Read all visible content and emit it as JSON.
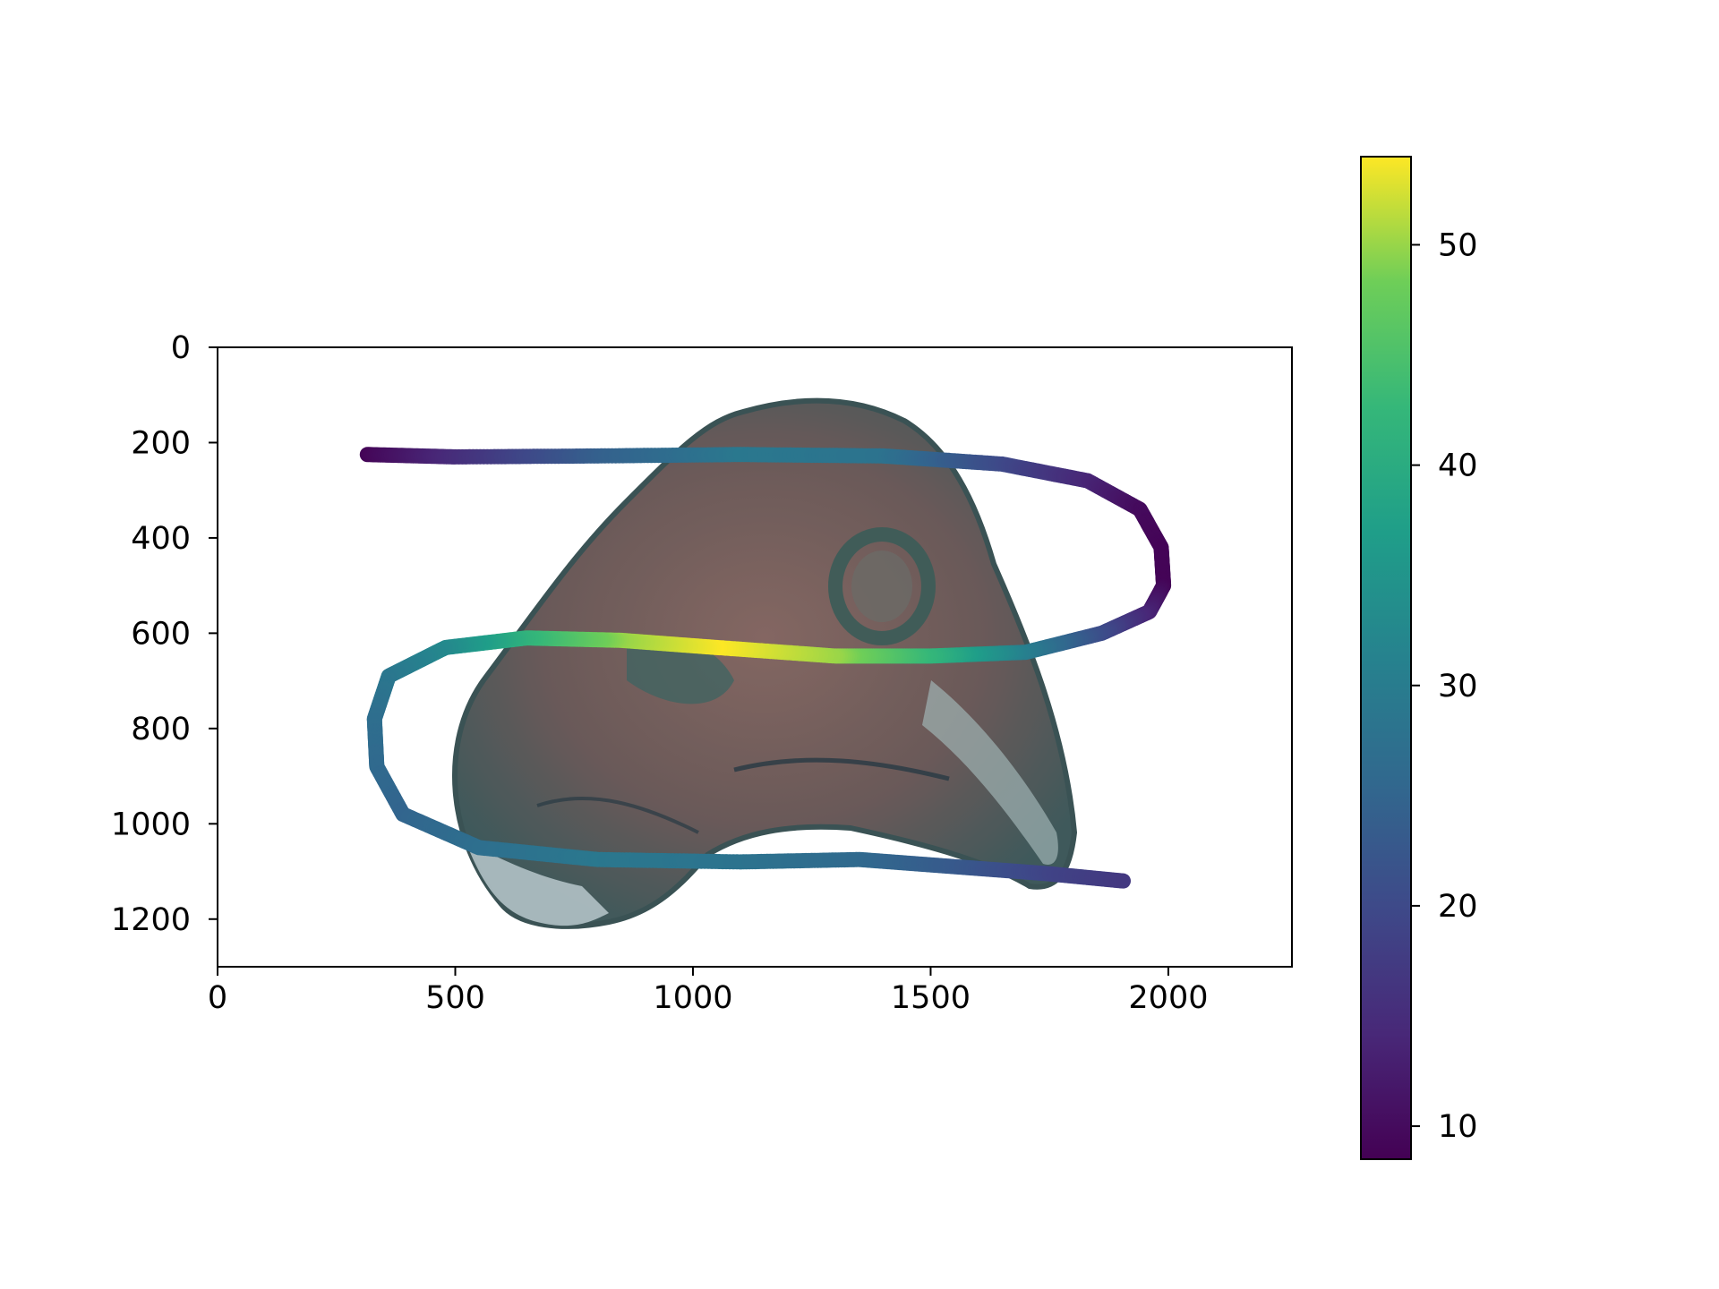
{
  "chart_data": {
    "type": "scatter",
    "title": "",
    "xlabel": "",
    "ylabel": "",
    "xlim": [
      0,
      2260
    ],
    "ylim": [
      1300,
      0
    ],
    "y_inverted": true,
    "grid": false,
    "background_image": "specimen-head-volume-render",
    "x_ticks": [
      0,
      500,
      1000,
      1500,
      2000
    ],
    "y_ticks": [
      0,
      200,
      400,
      600,
      800,
      1000,
      1200
    ],
    "x_tick_labels": [
      "0",
      "500",
      "1000",
      "1500",
      "2000"
    ],
    "y_tick_labels": [
      "0",
      "200",
      "400",
      "600",
      "800",
      "1000",
      "1200"
    ],
    "path_points": [
      {
        "x": 315,
        "y": 225,
        "c": 9
      },
      {
        "x": 500,
        "y": 230,
        "c": 15
      },
      {
        "x": 800,
        "y": 228,
        "c": 24
      },
      {
        "x": 1100,
        "y": 225,
        "c": 29
      },
      {
        "x": 1400,
        "y": 228,
        "c": 28
      },
      {
        "x": 1650,
        "y": 245,
        "c": 20
      },
      {
        "x": 1830,
        "y": 280,
        "c": 14
      },
      {
        "x": 1940,
        "y": 340,
        "c": 10
      },
      {
        "x": 1985,
        "y": 420,
        "c": 9
      },
      {
        "x": 1990,
        "y": 500,
        "c": 9
      },
      {
        "x": 1960,
        "y": 555,
        "c": 13
      },
      {
        "x": 1860,
        "y": 600,
        "c": 20
      },
      {
        "x": 1700,
        "y": 640,
        "c": 30
      },
      {
        "x": 1500,
        "y": 648,
        "c": 42
      },
      {
        "x": 1300,
        "y": 648,
        "c": 50
      },
      {
        "x": 1050,
        "y": 630,
        "c": 54
      },
      {
        "x": 850,
        "y": 615,
        "c": 50
      },
      {
        "x": 650,
        "y": 610,
        "c": 42
      },
      {
        "x": 480,
        "y": 630,
        "c": 33
      },
      {
        "x": 360,
        "y": 690,
        "c": 29
      },
      {
        "x": 330,
        "y": 780,
        "c": 27
      },
      {
        "x": 335,
        "y": 880,
        "c": 26
      },
      {
        "x": 390,
        "y": 980,
        "c": 25
      },
      {
        "x": 550,
        "y": 1050,
        "c": 27
      },
      {
        "x": 800,
        "y": 1075,
        "c": 29
      },
      {
        "x": 1100,
        "y": 1080,
        "c": 28
      },
      {
        "x": 1350,
        "y": 1075,
        "c": 26
      },
      {
        "x": 1550,
        "y": 1090,
        "c": 23
      },
      {
        "x": 1750,
        "y": 1105,
        "c": 19
      },
      {
        "x": 1905,
        "y": 1120,
        "c": 17
      }
    ],
    "colorbar": {
      "colormap": "viridis",
      "min": 8.5,
      "max": 54,
      "ticks": [
        10,
        20,
        30,
        40,
        50
      ],
      "tick_labels": [
        "10",
        "20",
        "30",
        "40",
        "50"
      ]
    }
  }
}
